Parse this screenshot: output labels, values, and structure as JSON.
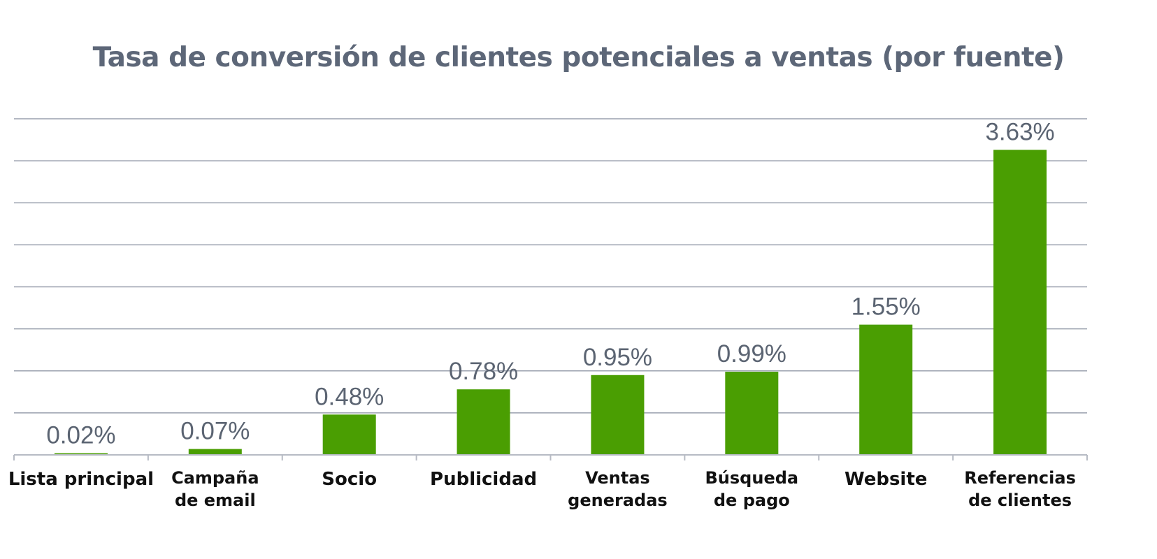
{
  "chart_data": {
    "type": "bar",
    "title": "Tasa de conversión de clientes potenciales a ventas (por fuente)",
    "xlabel": "",
    "ylabel": "",
    "categories": [
      [
        "Lista principal"
      ],
      [
        "Campaña",
        "de email"
      ],
      [
        "Socio"
      ],
      [
        "Publicidad"
      ],
      [
        "Ventas",
        "generadas"
      ],
      [
        "Búsqueda",
        "de pago"
      ],
      [
        "Website"
      ],
      [
        "Referencias",
        "de clientes"
      ]
    ],
    "values": [
      0.02,
      0.07,
      0.48,
      0.78,
      0.95,
      0.99,
      1.55,
      3.63
    ],
    "value_labels": [
      "0.02%",
      "0.07%",
      "0.48%",
      "0.78%",
      "0.95%",
      "0.99%",
      "1.55%",
      "3.63%"
    ],
    "ylim": [
      0,
      4
    ],
    "grid": true,
    "legend": "none",
    "bar_color": "#4a9e02",
    "title_color": "#5d6778",
    "label_color": "#5b6472"
  }
}
